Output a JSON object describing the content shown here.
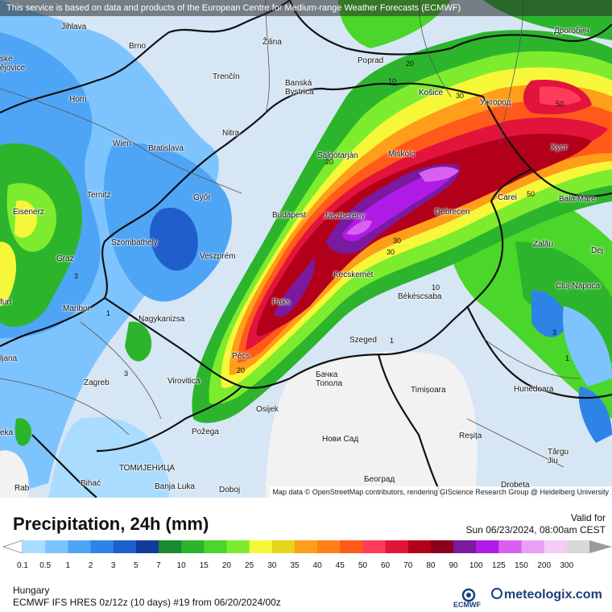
{
  "header": {
    "notice": "This service is based on data and products of the European Centre for Medium-range Weather Forecasts (ECMWF)"
  },
  "map": {
    "attribution": "Map data © OpenStreetMap contributors, rendering GIScience Research Group @ Heidelberg University",
    "cities": [
      {
        "label": "Jihlava"
      },
      {
        "label": "Brno"
      },
      {
        "label": "Žilina"
      },
      {
        "label": "Poprad"
      },
      {
        "label": "Дрогобич"
      },
      {
        "label": "ské\nějovice"
      },
      {
        "label": "Trenčín"
      },
      {
        "label": "Banská\nBystrica"
      },
      {
        "label": "Košice"
      },
      {
        "label": "Ужгород"
      },
      {
        "label": "Horn"
      },
      {
        "label": "Nitra"
      },
      {
        "label": "Wien"
      },
      {
        "label": "Bratislava"
      },
      {
        "label": "Salgótarján"
      },
      {
        "label": "Miskolc"
      },
      {
        "label": "Хуст"
      },
      {
        "label": "Ternitz"
      },
      {
        "label": "Győr"
      },
      {
        "label": "Carei"
      },
      {
        "label": "Baia Mare"
      },
      {
        "label": "Eisenerz"
      },
      {
        "label": "Budapest"
      },
      {
        "label": "Jászberény"
      },
      {
        "label": "Debrecen"
      },
      {
        "label": "Szombathely"
      },
      {
        "label": "Zalău"
      },
      {
        "label": "Graz"
      },
      {
        "label": "Veszprém"
      },
      {
        "label": "Dej"
      },
      {
        "label": "Kecskemét"
      },
      {
        "label": "Cluj-Napoca"
      },
      {
        "label": "furt"
      },
      {
        "label": "Maribor"
      },
      {
        "label": "Paks"
      },
      {
        "label": "Békéscsaba"
      },
      {
        "label": "Nagykanizsa"
      },
      {
        "label": "Szeged"
      },
      {
        "label": "ljana"
      },
      {
        "label": "Pécs"
      },
      {
        "label": "Бачка\nТопола"
      },
      {
        "label": "Zagreb"
      },
      {
        "label": "Virovitica"
      },
      {
        "label": "Timișoara"
      },
      {
        "label": "Hunedoara"
      },
      {
        "label": "Osijek"
      },
      {
        "label": "eka"
      },
      {
        "label": "Požega"
      },
      {
        "label": "Нови Сад"
      },
      {
        "label": "Reșița"
      },
      {
        "label": "Târgu\nJiu"
      },
      {
        "label": "ТОМИЈЕНИЦА"
      },
      {
        "label": "Rab"
      },
      {
        "label": "Bihać"
      },
      {
        "label": "Banja Luka"
      },
      {
        "label": "Doboj"
      },
      {
        "label": "Београд"
      },
      {
        "label": "Drobeta"
      }
    ],
    "contour_labels": [
      "20",
      "10",
      "30",
      "50",
      "20",
      "50",
      "30",
      "30",
      "10",
      "3",
      "1",
      "1",
      "3",
      "1",
      "20",
      "3"
    ]
  },
  "legend": {
    "title": "Precipitation, 24h (mm)",
    "valid_label": "Valid for",
    "valid_time": "Sun 06/23/2024, 08:00am CEST",
    "region": "Hungary",
    "model_run": "ECMWF IFS HRES 0z/12z (10 days) #19 from  06/20/2024/00z",
    "ecmwf_logo": "ECMWF",
    "brand": "meteologix.com",
    "values": [
      "0.1",
      "0.5",
      "1",
      "2",
      "3",
      "5",
      "7",
      "10",
      "15",
      "20",
      "25",
      "30",
      "35",
      "40",
      "45",
      "50",
      "60",
      "70",
      "80",
      "90",
      "100",
      "125",
      "150",
      "200",
      "300"
    ],
    "colors": [
      "#aadcff",
      "#7dc4ff",
      "#4fa5f5",
      "#2e84e6",
      "#1f5fcc",
      "#143a99",
      "#1a8a2e",
      "#2cb52c",
      "#4ad62a",
      "#7dec2e",
      "#f7f73a",
      "#e5d61a",
      "#ff9e1a",
      "#ff7f1a",
      "#ff5a1a",
      "#ff3b5a",
      "#e2143c",
      "#b3001a",
      "#8a001a",
      "#7a1aa0",
      "#b01ae6",
      "#d860f0",
      "#e8a0f5",
      "#f2ccf7",
      "#d8d8d8"
    ]
  }
}
